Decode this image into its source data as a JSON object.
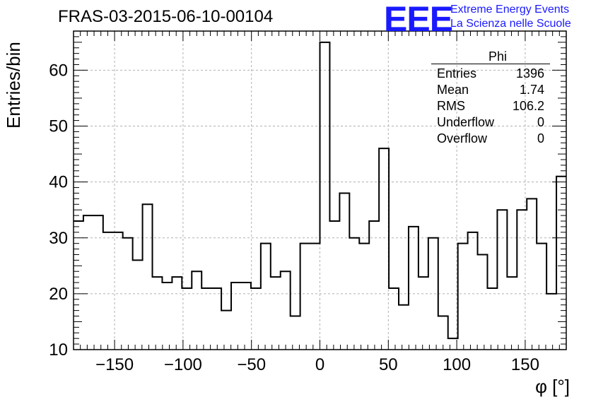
{
  "header": {
    "title": "FRAS-03-2015-06-10-00104",
    "logo_text": "EEE",
    "logo_line1": "Extreme Energy Events",
    "logo_line2": "La Scienza nelle Scuole"
  },
  "stats_box": {
    "title": "Phi",
    "rows": [
      {
        "label": "Entries",
        "value": "1396"
      },
      {
        "label": "Mean",
        "value": "1.74"
      },
      {
        "label": "RMS",
        "value": "106.2"
      },
      {
        "label": "Underflow",
        "value": "0"
      },
      {
        "label": "Overflow",
        "value": "0"
      }
    ]
  },
  "chart_data": {
    "type": "bar",
    "style": "step histogram",
    "title": "FRAS-03-2015-06-10-00104",
    "xlabel": "φ [°]",
    "ylabel": "Entries/bin",
    "xlim": [
      -180,
      180
    ],
    "ylim": [
      10,
      67
    ],
    "bin_width": 7.2,
    "bin_edges_start": -180,
    "values": [
      33,
      34,
      34,
      31,
      31,
      30,
      26,
      36,
      23,
      22,
      23,
      21,
      24,
      21,
      21,
      17,
      22,
      22,
      21,
      29,
      23,
      24,
      16,
      29,
      29,
      65,
      33,
      38,
      30,
      29,
      33,
      46,
      21,
      18,
      32,
      23,
      30,
      16,
      12,
      29,
      31,
      27,
      21,
      35,
      23,
      35,
      37,
      29,
      20,
      41
    ],
    "x_ticks": [
      -150,
      -100,
      -50,
      0,
      50,
      100,
      150
    ],
    "x_tick_labels": [
      "−150",
      "−100",
      "−50",
      "0",
      "50",
      "100",
      "150"
    ],
    "y_ticks": [
      10,
      20,
      30,
      40,
      50,
      60
    ],
    "y_tick_labels": [
      "10",
      "20",
      "30",
      "40",
      "50",
      "60"
    ],
    "grid": true,
    "colors": {
      "line": "#000000",
      "grid": "#b0b0b0",
      "logo": "#1a1aff"
    }
  }
}
